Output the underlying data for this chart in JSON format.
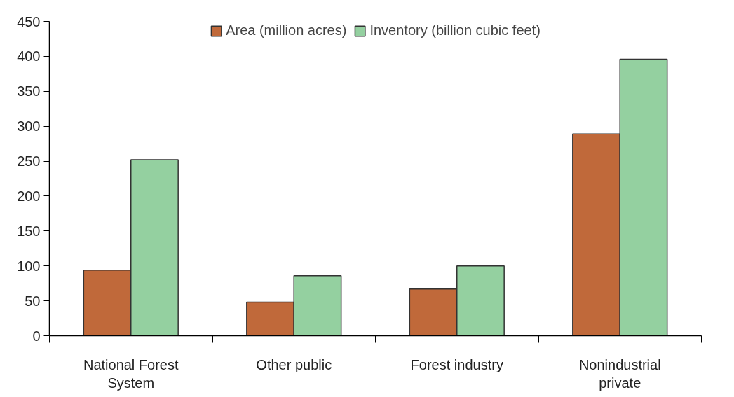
{
  "chart_data": {
    "type": "bar",
    "categories": [
      "National Forest System",
      "Other public",
      "Forest industry",
      "Nonindustrial private"
    ],
    "series": [
      {
        "name": "Area (million acres)",
        "color": "#c0693a",
        "values": [
          94,
          48,
          67,
          289
        ]
      },
      {
        "name": "Inventory (billion cubic feet)",
        "color": "#94d0a0",
        "values": [
          252,
          86,
          100,
          396
        ]
      }
    ],
    "ylim": [
      0,
      450
    ],
    "yticks": [
      0,
      50,
      100,
      150,
      200,
      250,
      300,
      350,
      400,
      450
    ],
    "grid": false,
    "legend": "top"
  }
}
